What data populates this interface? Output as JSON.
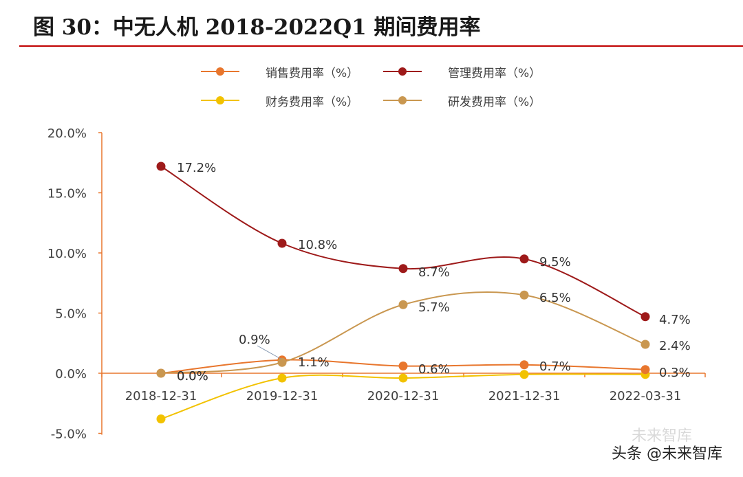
{
  "header": {
    "title": "图  30：中无人机 2018-2022Q1 期间费用率"
  },
  "chart_data": {
    "type": "line",
    "categories": [
      "2018-12-31",
      "2019-12-31",
      "2020-12-31",
      "2021-12-31",
      "2022-03-31"
    ],
    "series": [
      {
        "name": "管理费用率（%）",
        "color": "#9e1a1a",
        "values": [
          17.2,
          10.8,
          8.7,
          9.5,
          4.7
        ],
        "labels": [
          "17.2%",
          "10.8%",
          "8.7%",
          "9.5%",
          "4.7%"
        ]
      },
      {
        "name": "研发费用率（%）",
        "color": "#c99750",
        "values": [
          0.0,
          0.9,
          5.7,
          6.5,
          2.4
        ],
        "labels": [
          "0.0%",
          "0.9%",
          "5.7%",
          "6.5%",
          "2.4%"
        ]
      },
      {
        "name": "销售费用率（%）",
        "color": "#e8762d",
        "values": [
          0.0,
          1.1,
          0.6,
          0.7,
          0.3
        ],
        "labels": [
          "0.0%",
          "1.1%",
          "0.6%",
          "0.7%",
          "0.3%"
        ]
      },
      {
        "name": "财务费用率（%）",
        "color": "#f2c200",
        "values": [
          -3.8,
          -0.4,
          -0.4,
          -0.1,
          -0.1
        ],
        "labels": []
      }
    ],
    "ylim": [
      -5,
      20
    ],
    "yticks": [
      "-5.0%",
      "0.0%",
      "5.0%",
      "10.0%",
      "15.0%",
      "20.0%"
    ],
    "ytick_values": [
      -5,
      0,
      5,
      10,
      15,
      20
    ],
    "axis_color": "#e8762d",
    "legend": [
      {
        "label": "销售费用率（%）",
        "color": "#e8762d"
      },
      {
        "label": "管理费用率（%）",
        "color": "#9e1a1a"
      },
      {
        "label": "财务费用率（%）",
        "color": "#f2c200"
      },
      {
        "label": "研发费用率（%）",
        "color": "#c99750"
      }
    ]
  },
  "watermark": {
    "background_text": "未来智库",
    "text": "头条 @未来智库"
  }
}
